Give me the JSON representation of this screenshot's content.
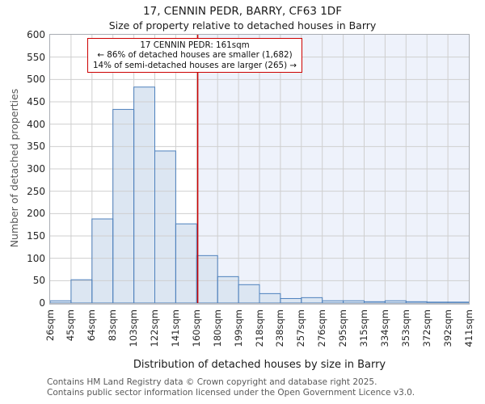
{
  "title": "17, CENNIN PEDR, BARRY, CF63 1DF",
  "subtitle": "Size of property relative to detached houses in Barry",
  "annotation": {
    "line1": "17 CENNIN PEDR: 161sqm",
    "line2": "← 86% of detached houses are smaller (1,682)",
    "line3": "14% of semi-detached houses are larger (265) →"
  },
  "chart_data": {
    "type": "bar",
    "title": "17, CENNIN PEDR, BARRY, CF63 1DF — Size of property relative to detached houses in Barry",
    "xlabel": "Distribution of detached houses by size in Barry",
    "ylabel": "Number of detached properties",
    "categories": [
      "26sqm",
      "45sqm",
      "64sqm",
      "83sqm",
      "103sqm",
      "122sqm",
      "141sqm",
      "160sqm",
      "180sqm",
      "199sqm",
      "218sqm",
      "238sqm",
      "257sqm",
      "276sqm",
      "295sqm",
      "315sqm",
      "334sqm",
      "353sqm",
      "372sqm",
      "392sqm",
      "411sqm"
    ],
    "bin_edges_sqm": [
      26,
      45,
      64,
      83,
      103,
      122,
      141,
      160,
      180,
      199,
      218,
      238,
      257,
      276,
      295,
      315,
      334,
      353,
      372,
      392,
      411
    ],
    "values": [
      5,
      52,
      188,
      433,
      483,
      340,
      177,
      106,
      59,
      41,
      21,
      10,
      12,
      5,
      5,
      3,
      5,
      3,
      2,
      2
    ],
    "ylim": [
      0,
      600
    ],
    "ytick_step": 50,
    "grid": true,
    "legend": "none",
    "marker_value_sqm": 161,
    "colors": {
      "bar_fill": "#dce6f2",
      "bar_border": "#4e81bd",
      "grid": "#cfcfcf",
      "marker": "#cc0000",
      "shade_right_of_marker": "#eef2fb"
    }
  },
  "footer": {
    "line1": "Contains HM Land Registry data © Crown copyright and database right 2025.",
    "line2": "Contains public sector information licensed under the Open Government Licence v3.0."
  }
}
